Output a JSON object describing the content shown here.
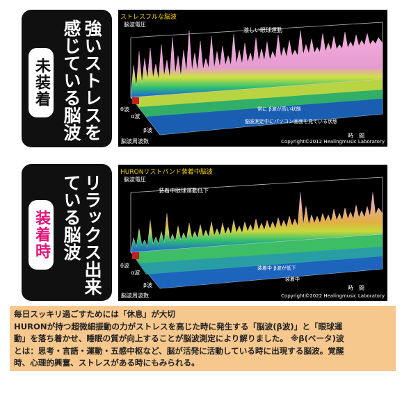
{
  "panels": [
    {
      "badge": "未装着",
      "badge_color": "#111111",
      "description": "強いストレスを感じている脳波"
    },
    {
      "badge": "装着時",
      "badge_color": "#e0147a",
      "description": "リラックス出来ている脳波"
    }
  ],
  "charts": [
    {
      "title": "ストレスフルな脳波",
      "axis_voltage": "脳波電圧",
      "annotation_top": "激しい眼球運動",
      "annotation_mid": "常に β波が高い状態",
      "annotation_bottom": "脳波測定中にパソコン画面を見ている状態",
      "axis_theta": "θ波",
      "axis_alpha": "α波",
      "axis_beta": "β波",
      "axis_freq": "脳波周波数",
      "axis_time": "時　間",
      "copyright": "Copyright©2012 Healingmusic Laboratory",
      "surface_color": "#f0a8d8"
    },
    {
      "title": "HURONリストバンド装着中脳波",
      "axis_voltage": "脳波電圧",
      "annotation_top": "装着中眼球運動低下",
      "annotation_mid": "装着中 β波が低下",
      "annotation_bottom": "装着中",
      "axis_theta": "θ波",
      "axis_alpha": "α波",
      "axis_beta": "β波",
      "axis_freq": "脳波周波数",
      "axis_time": "時　間",
      "copyright": "Copyright©2022 Healingmusic Laboratory",
      "surface_color": "#f0a8d8"
    }
  ],
  "caption": {
    "heading": "毎日スッキリ過ごすためには「休息」が大切",
    "line1": "HURONが持つ超微細振動の力がストレスを高じた時に発生する「脳波(β波)」と「眼球運",
    "line2": "動」を落ち着かせ、睡眠の質が向上することが脳波測定により解りました。 ※β(ベータ)波",
    "line3": "とは：思考・言語・運動・五感中枢など、脳が活発に活動している時に出現する脳波。覚醒",
    "line4": "時、心理的興奮、ストレスがある時にもみられる。"
  }
}
